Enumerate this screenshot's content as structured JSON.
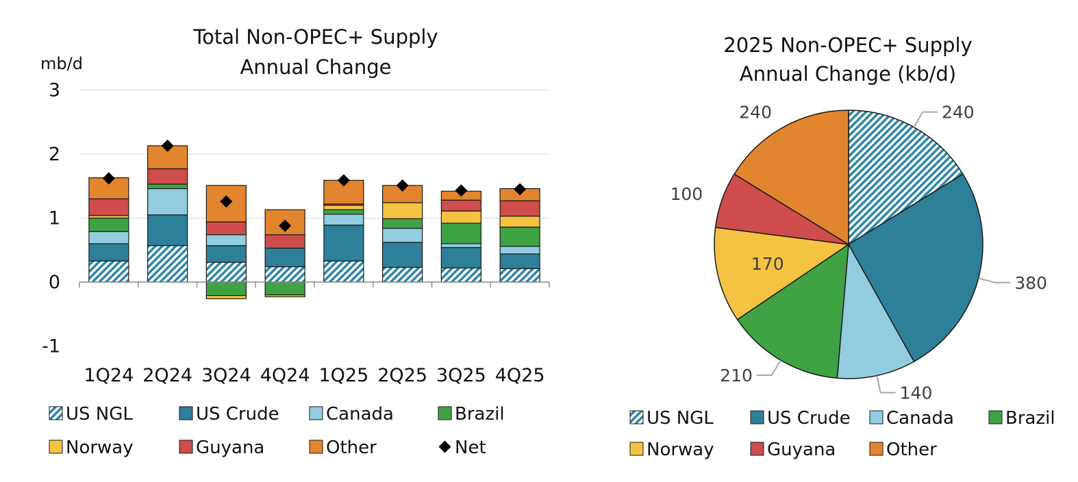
{
  "chart_data": [
    {
      "type": "bar",
      "stacked": true,
      "title_lines": [
        "Total Non-OPEC+ Supply",
        "Annual Change"
      ],
      "ylabel": "mb/d",
      "xlabel": "",
      "ylim": [
        -1,
        3
      ],
      "yticks": [
        "3",
        "2",
        "1",
        "0",
        "-1"
      ],
      "ytick_values": [
        3,
        2,
        1,
        0,
        -1
      ],
      "grid": true,
      "legend_position": "bottom",
      "categories": [
        "1Q24",
        "2Q24",
        "3Q24",
        "4Q24",
        "1Q25",
        "2Q25",
        "3Q25",
        "4Q25"
      ],
      "series": [
        {
          "name": "US NGL",
          "color": "#2e86a3",
          "pattern": "hatch",
          "values": [
            0.33,
            0.57,
            0.31,
            0.24,
            0.33,
            0.23,
            0.22,
            0.21
          ]
        },
        {
          "name": "US Crude",
          "color": "#2e7f9a",
          "values": [
            0.27,
            0.48,
            0.26,
            0.29,
            0.56,
            0.39,
            0.32,
            0.23
          ]
        },
        {
          "name": "Canada",
          "color": "#92cddf",
          "values": [
            0.19,
            0.41,
            0.17,
            0.0,
            0.17,
            0.22,
            0.06,
            0.12
          ]
        },
        {
          "name": "Brazil",
          "color": "#3fa344",
          "values": [
            0.21,
            0.07,
            -0.21,
            -0.2,
            0.07,
            0.15,
            0.32,
            0.3
          ]
        },
        {
          "name": "Norway",
          "color": "#f5c342",
          "values": [
            0.04,
            0.0,
            -0.05,
            -0.03,
            0.07,
            0.25,
            0.19,
            0.17
          ]
        },
        {
          "name": "Guyana",
          "color": "#cf4d4d",
          "values": [
            0.26,
            0.24,
            0.2,
            0.21,
            0.02,
            0.0,
            0.17,
            0.24
          ]
        },
        {
          "name": "Other",
          "color": "#e3842f",
          "values": [
            0.33,
            0.36,
            0.57,
            0.39,
            0.37,
            0.27,
            0.14,
            0.19
          ]
        }
      ],
      "net": {
        "name": "Net",
        "color": "#000000",
        "values": [
          1.62,
          2.13,
          1.26,
          0.88,
          1.59,
          1.51,
          1.43,
          1.45
        ]
      },
      "legend": [
        "US NGL",
        "US Crude",
        "Canada",
        "Brazil",
        "Norway",
        "Guyana",
        "Other",
        "Net"
      ]
    },
    {
      "type": "pie",
      "title_lines": [
        "2025 Non-OPEC+ Supply",
        "Annual Change (kb/d)"
      ],
      "legend_position": "bottom",
      "labels": [
        "US NGL",
        "US Crude",
        "Canada",
        "Brazil",
        "Norway",
        "Guyana",
        "Other"
      ],
      "values": [
        240,
        380,
        140,
        210,
        170,
        100,
        240
      ],
      "value_labels": [
        "240",
        "380",
        "140",
        "210",
        "170",
        "100",
        "240"
      ],
      "colors": [
        "#2e86a3",
        "#2e7f9a",
        "#92cddf",
        "#3fa344",
        "#f5c342",
        "#cf4d4d",
        "#e3842f"
      ],
      "legend": [
        "US NGL",
        "US Crude",
        "Canada",
        "Brazil",
        "Norway",
        "Guyana",
        "Other"
      ]
    }
  ]
}
